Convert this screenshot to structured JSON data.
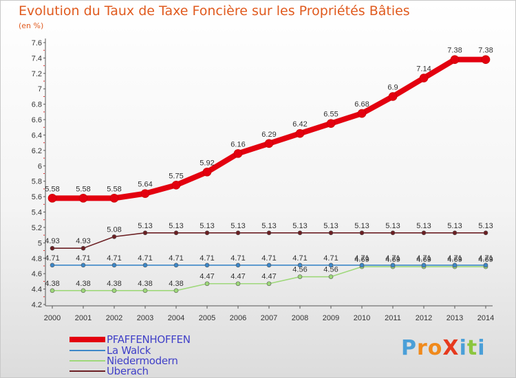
{
  "title": "Evolution du Taux de Taxe Foncière sur les Propriétés Bâties",
  "unit": "(en %)",
  "logo": "ProXiti",
  "chart_data": {
    "type": "line",
    "title": "Evolution du Taux de Taxe Foncière sur les Propriétés Bâties",
    "ylabel": "(en %)",
    "xlabel": "",
    "x": [
      "2000",
      "2001",
      "2002",
      "2003",
      "2004",
      "2005",
      "2006",
      "2007",
      "2008",
      "2009",
      "2010",
      "2011",
      "2012",
      "2013",
      "2014"
    ],
    "ylim": [
      4.2,
      7.6
    ],
    "yticks": [
      "4.2",
      "4.4",
      "4.6",
      "4.8",
      "5",
      "5.2",
      "5.4",
      "5.6",
      "5.8",
      "6",
      "6.2",
      "6.4",
      "6.6",
      "6.8",
      "7",
      "7.2",
      "7.4",
      "7.6"
    ],
    "grid": false,
    "legend_position": "bottom-left",
    "series": [
      {
        "name": "PFAFFENHOFFEN",
        "color": "#e3000f",
        "values": [
          5.58,
          5.58,
          5.58,
          5.64,
          5.75,
          5.92,
          6.16,
          6.29,
          6.42,
          6.55,
          6.68,
          6.9,
          7.14,
          7.38,
          7.38
        ],
        "labels": [
          "5.58",
          "5.58",
          "5.58",
          "5.64",
          "5.75",
          "5.92",
          "6.16",
          "6.29",
          "6.42",
          "6.55",
          "6.68",
          "6.9",
          "7.14",
          "7.38",
          "7.38"
        ]
      },
      {
        "name": "La Walck",
        "color": "#3c87c8",
        "values": [
          4.71,
          4.71,
          4.71,
          4.71,
          4.71,
          4.71,
          4.71,
          4.71,
          4.71,
          4.71,
          4.71,
          4.71,
          4.71,
          4.71,
          4.71
        ],
        "labels": [
          "4.71",
          "4.71",
          "4.71",
          "4.71",
          "4.71",
          "4.71",
          "4.71",
          "4.71",
          "4.71",
          "4.71",
          "4.71",
          "4.71",
          "4.71",
          "4.71",
          "4.71"
        ]
      },
      {
        "name": "Niedermodern",
        "color": "#9ed87a",
        "values": [
          4.38,
          4.38,
          4.38,
          4.38,
          4.38,
          4.47,
          4.47,
          4.47,
          4.56,
          4.56,
          4.69,
          4.69,
          4.69,
          4.69,
          4.69
        ],
        "labels": [
          "4.38",
          "4.38",
          "4.38",
          "4.38",
          "4.38",
          "4.47",
          "4.47",
          "4.47",
          "4.56",
          "4.56",
          "4.69",
          "4.69",
          "4.69",
          "4.69",
          "4.69"
        ]
      },
      {
        "name": "Uberach",
        "color": "#6b1f23",
        "values": [
          4.93,
          4.93,
          5.08,
          5.13,
          5.13,
          5.13,
          5.13,
          5.13,
          5.13,
          5.13,
          5.13,
          5.13,
          5.13,
          5.13,
          5.13
        ],
        "labels": [
          "4.93",
          "4.93",
          "5.08",
          "5.13",
          "5.13",
          "5.13",
          "5.13",
          "5.13",
          "5.13",
          "5.13",
          "5.13",
          "5.13",
          "5.13",
          "5.13",
          "5.13"
        ]
      }
    ]
  }
}
